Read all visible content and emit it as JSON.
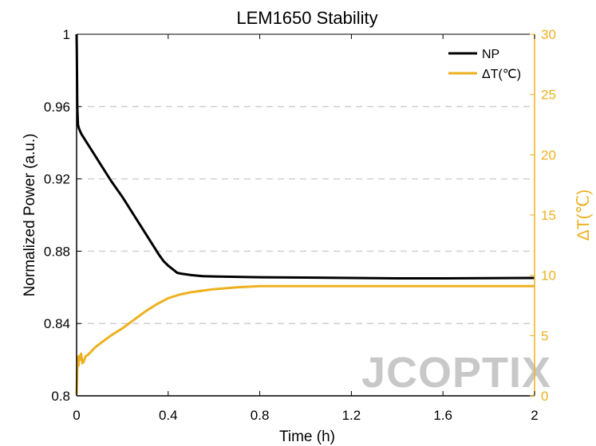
{
  "chart_data": {
    "type": "line",
    "title": "LEM1650 Stability",
    "xlabel": "Time (h)",
    "ylabel_left": "Normalized Power (a.u.)",
    "ylabel_right": "ΔT(℃)",
    "xlim": [
      0,
      2
    ],
    "ylim_left": [
      0.8,
      1
    ],
    "ylim_right": [
      0,
      30
    ],
    "x_ticks": [
      "0",
      "0.4",
      "0.8",
      "1.2",
      "1.6",
      "2"
    ],
    "x_tick_values": [
      0,
      0.4,
      0.8,
      1.2,
      1.6,
      2
    ],
    "y_left_ticks": [
      "0.8",
      "0.84",
      "0.88",
      "0.92",
      "0.96",
      "1"
    ],
    "y_left_tick_values": [
      0.8,
      0.84,
      0.88,
      0.92,
      0.96,
      1
    ],
    "y_right_ticks": [
      "0",
      "5",
      "10",
      "15",
      "20",
      "25",
      "30"
    ],
    "y_right_tick_values": [
      0,
      5,
      10,
      15,
      20,
      25,
      30
    ],
    "grid": "horizontal-dashed",
    "legend_position": "top-right",
    "colors": {
      "np": "#000000",
      "dt": "#EDB120",
      "grid": "#cfcfcf",
      "watermark": "#c8c8c8"
    },
    "watermark": "JCOPTIX",
    "series": [
      {
        "name": "NP",
        "axis": "left",
        "x": [
          0,
          0.001,
          0.003,
          0.006,
          0.01,
          0.02,
          0.04,
          0.06,
          0.08,
          0.1,
          0.15,
          0.2,
          0.25,
          0.3,
          0.33,
          0.36,
          0.38,
          0.4,
          0.42,
          0.44,
          0.46,
          0.5,
          0.55,
          0.6,
          0.7,
          0.8,
          1.0,
          1.2,
          1.4,
          1.6,
          1.8,
          2.0
        ],
        "values": [
          1.0,
          0.99,
          0.96,
          0.95,
          0.948,
          0.945,
          0.941,
          0.937,
          0.933,
          0.929,
          0.919,
          0.91,
          0.9,
          0.89,
          0.884,
          0.878,
          0.8745,
          0.872,
          0.87,
          0.868,
          0.8675,
          0.8668,
          0.8662,
          0.866,
          0.8658,
          0.8656,
          0.8654,
          0.8652,
          0.865,
          0.865,
          0.8651,
          0.8652
        ]
      },
      {
        "name": "ΔT(℃)",
        "axis": "right",
        "x": [
          0,
          0.002,
          0.004,
          0.006,
          0.008,
          0.01,
          0.015,
          0.02,
          0.025,
          0.03,
          0.04,
          0.05,
          0.06,
          0.08,
          0.1,
          0.15,
          0.2,
          0.25,
          0.3,
          0.35,
          0.4,
          0.45,
          0.5,
          0.6,
          0.7,
          0.8,
          0.9,
          1.0,
          1.2,
          1.4,
          1.6,
          1.8,
          2.0
        ],
        "values": [
          0.1,
          1.5,
          2.8,
          3.2,
          2.5,
          3.3,
          3.0,
          3.5,
          2.7,
          2.8,
          3.3,
          3.4,
          3.6,
          4.0,
          4.3,
          5.0,
          5.6,
          6.3,
          7.0,
          7.6,
          8.1,
          8.4,
          8.6,
          8.85,
          9.0,
          9.1,
          9.1,
          9.1,
          9.1,
          9.1,
          9.1,
          9.1,
          9.1
        ]
      }
    ]
  }
}
